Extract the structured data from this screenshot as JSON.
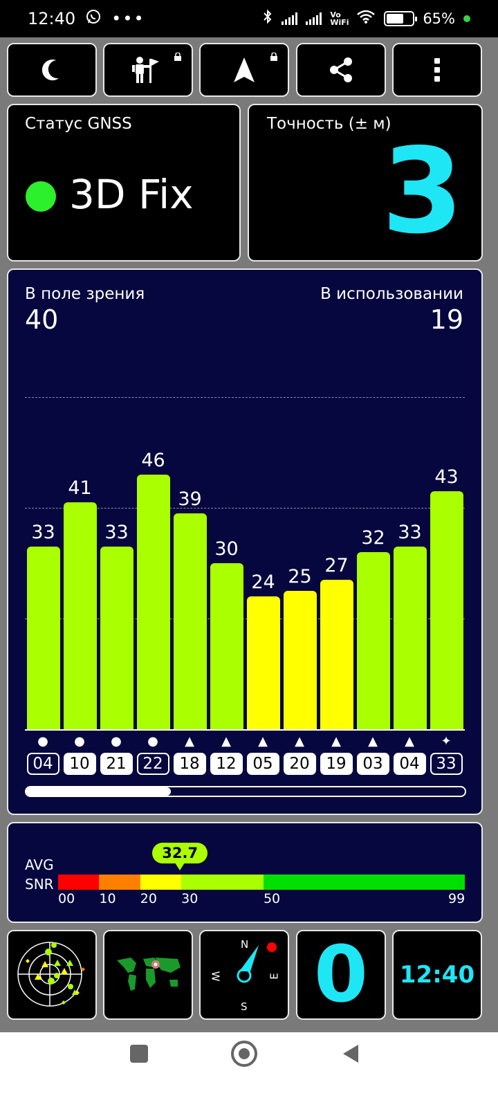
{
  "status_bar": {
    "time": "12:40",
    "battery_percent": "65%",
    "vowifi": "Vo WiFi",
    "battery_level": 0.65
  },
  "toolbar": {
    "buttons": [
      {
        "icon": "moon-icon"
      },
      {
        "icon": "person-flag-icon"
      },
      {
        "icon": "navigation-arrow-icon"
      },
      {
        "icon": "share-icon"
      },
      {
        "icon": "more-vert-icon"
      }
    ]
  },
  "gnss": {
    "title": "Статус GNSS",
    "status": "3D Fix",
    "status_color": "#2bf02b"
  },
  "accuracy": {
    "title": "Точность (± м)",
    "value": "3",
    "color": "#1ee6f5"
  },
  "satellites": {
    "in_view_label": "В поле зрения",
    "in_view": "40",
    "in_use_label": "В использовании",
    "in_use": "19",
    "scroll_position": 0.33
  },
  "chart_data": {
    "type": "bar",
    "categories": [
      "04",
      "10",
      "21",
      "22",
      "18",
      "12",
      "05",
      "20",
      "19",
      "03",
      "04",
      "33"
    ],
    "values": [
      33,
      41,
      33,
      46,
      39,
      30,
      24,
      25,
      27,
      32,
      33,
      43
    ],
    "symbols": [
      "●",
      "●",
      "●",
      "●",
      "▲",
      "▲",
      "▲",
      "▲",
      "▲",
      "▲",
      "▲",
      "✦"
    ],
    "id_outline": [
      true,
      false,
      false,
      true,
      false,
      false,
      false,
      false,
      false,
      false,
      false,
      true
    ],
    "ylim": [
      0,
      60
    ],
    "gridlines": [
      20,
      40,
      60
    ],
    "colors": {
      "high": "#aaff00",
      "low": "#ffff00"
    },
    "low_threshold": 30
  },
  "snr": {
    "label_line1": "AVG",
    "label_line2": "SNR",
    "avg": "32.7",
    "avg_value": 32.7,
    "ticks": [
      "00",
      "10",
      "20",
      "30",
      "50",
      "99"
    ],
    "segments": [
      {
        "from": 0,
        "to": 10,
        "color": "#ff0000"
      },
      {
        "from": 10,
        "to": 20,
        "color": "#ff8000"
      },
      {
        "from": 20,
        "to": 30,
        "color": "#ffff00"
      },
      {
        "from": 30,
        "to": 50,
        "color": "#aaff00"
      },
      {
        "from": 50,
        "to": 99,
        "color": "#00e000"
      }
    ]
  },
  "bottom_tiles": {
    "count": "0",
    "count_color": "#1ee6f5",
    "clock": "12:40",
    "clock_color": "#1ee6f5",
    "compass": {
      "n": "N",
      "e": "E",
      "s": "S",
      "w": "W"
    }
  }
}
